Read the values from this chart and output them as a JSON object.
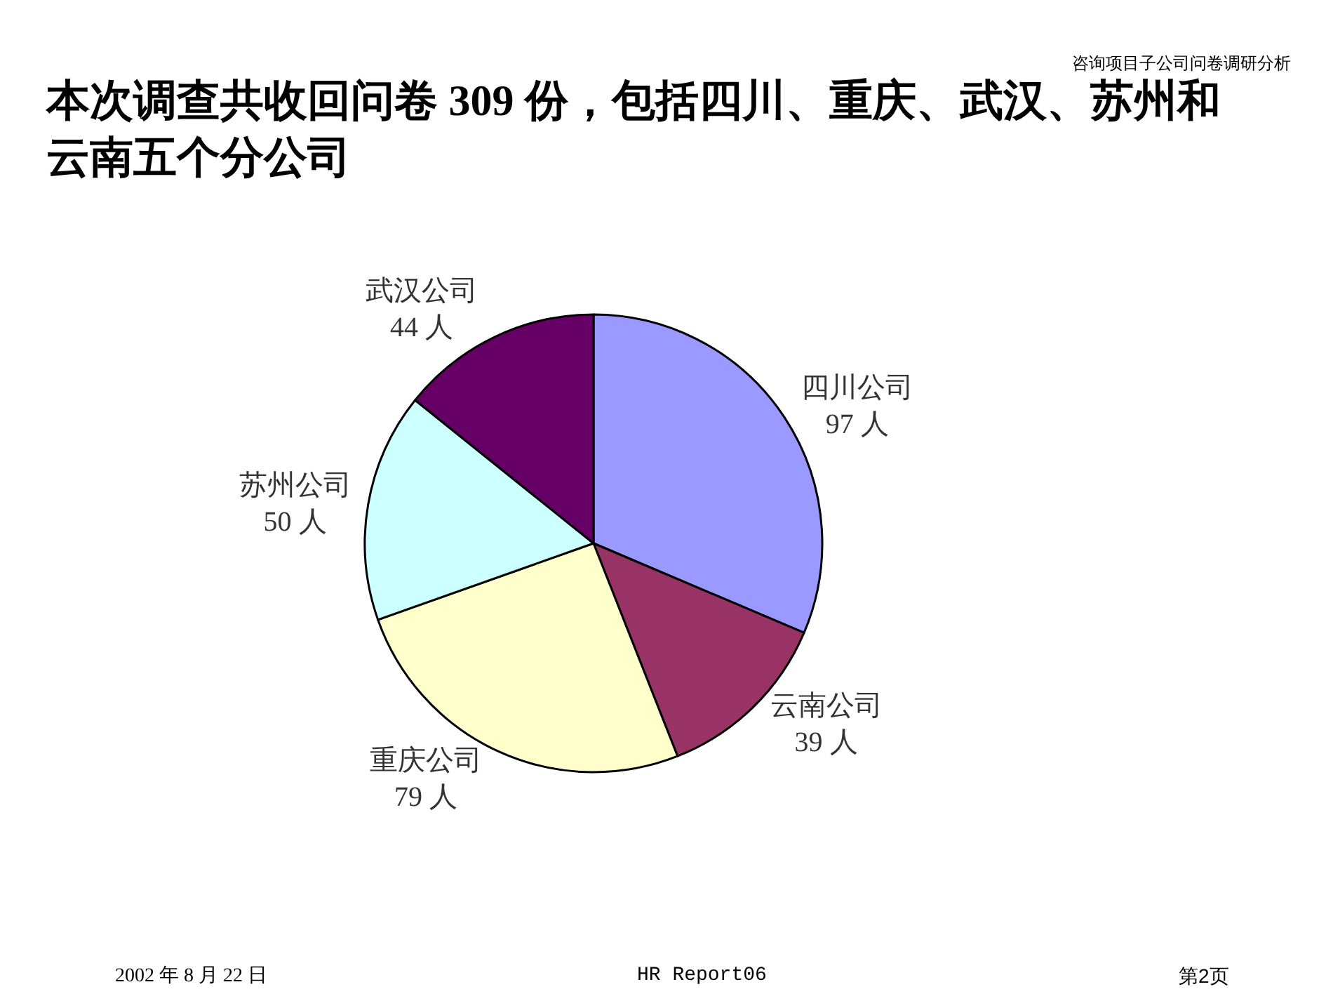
{
  "chart_data": {
    "type": "pie",
    "title": "本次调查共收回问卷 309 份，包括四川、重庆、武汉、苏州和云南五个分公司",
    "categories": [
      "四川公司",
      "云南公司",
      "重庆公司",
      "苏州公司",
      "武汉公司"
    ],
    "values": [
      97,
      39,
      79,
      50,
      44
    ],
    "value_labels": [
      "97 人",
      "39 人",
      "79 人",
      "50 人",
      "44 人"
    ],
    "colors": [
      "#9999ff",
      "#993366",
      "#ffffcc",
      "#ccffff",
      "#660066"
    ],
    "legend": false,
    "annotations": [
      "咨询项目子公司问卷调研分析",
      "2002 年 8 月 22 日",
      "HR Report06",
      "第2页"
    ]
  }
}
